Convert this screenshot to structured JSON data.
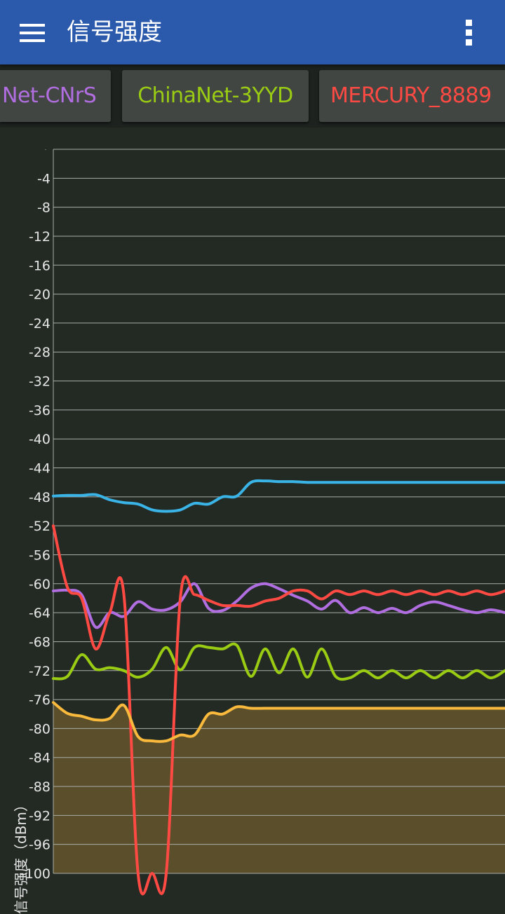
{
  "app": {
    "title": "信号强度"
  },
  "icons": {
    "menu": "menu-icon",
    "overflow": "more-vert-icon"
  },
  "tabs": [
    {
      "label": "Net-CNrS",
      "color": "#b06ee0"
    },
    {
      "label": "ChinaNet-3YYD",
      "color": "#9acc14"
    },
    {
      "label": "MERCURY_8889",
      "color": "#ff4a44"
    }
  ],
  "chart_data": {
    "type": "line",
    "ylabel": "信号强度（dBm）",
    "ylim": [
      -100,
      0
    ],
    "yticks": [
      -4,
      -8,
      -12,
      -16,
      -20,
      -24,
      -28,
      -32,
      -36,
      -40,
      -44,
      -48,
      -52,
      -56,
      -60,
      -64,
      -68,
      -72,
      -76,
      -80,
      -84,
      -88,
      -92,
      -96,
      -100
    ],
    "grid": true,
    "x": [
      0,
      0.5,
      1,
      1.5,
      2,
      2.5,
      3,
      3.5,
      4,
      4.5,
      5,
      5.5,
      6,
      6.5,
      7,
      7.5,
      8,
      8.5,
      9,
      9.5,
      10,
      10.5,
      11,
      11.5,
      12,
      12.5,
      13,
      13.5,
      14,
      14.5,
      15,
      15.5,
      16
    ],
    "series": [
      {
        "color": "#3ab4e6",
        "filled": false,
        "values": [
          -47.9,
          -47.8,
          -47.8,
          -47.7,
          -48.4,
          -48.8,
          -49.0,
          -49.8,
          -50.0,
          -49.8,
          -48.9,
          -49.0,
          -48.0,
          -47.9,
          -46.0,
          -45.8,
          -45.9,
          -45.9,
          -46.0,
          -46.0,
          -46.0,
          -46.0,
          -46.0,
          -46.0,
          -46.0,
          -46.0,
          -46.0,
          -46.0,
          -46.0,
          -46.0,
          -46.0,
          -46.0,
          -46.0
        ]
      },
      {
        "color": "#b06ee0",
        "filled": false,
        "values": [
          -61.0,
          -60.9,
          -61.5,
          -66.0,
          -64.0,
          -64.5,
          -62.5,
          -63.5,
          -63.6,
          -62.5,
          -60.0,
          -63.4,
          -63.7,
          -62.4,
          -60.6,
          -60.0,
          -60.7,
          -61.6,
          -62.4,
          -63.5,
          -62.3,
          -64.0,
          -63.3,
          -64.0,
          -63.4,
          -64.0,
          -63.0,
          -62.5,
          -63.0,
          -63.6,
          -64.0,
          -63.6,
          -64.0
        ]
      },
      {
        "color": "#9acc14",
        "filled": false,
        "values": [
          -73.1,
          -72.8,
          -69.8,
          -71.8,
          -71.6,
          -72.0,
          -72.9,
          -71.8,
          -68.8,
          -71.9,
          -68.8,
          -68.8,
          -69.0,
          -68.5,
          -72.8,
          -69.0,
          -72.3,
          -69.0,
          -72.9,
          -69.0,
          -72.8,
          -73.0,
          -72.0,
          -73.0,
          -72.0,
          -73.0,
          -72.0,
          -73.0,
          -72.0,
          -73.0,
          -72.0,
          -73.0,
          -72.0
        ]
      },
      {
        "color": "#ff4a44",
        "filled": false,
        "values": [
          -52.0,
          -60.5,
          -62.0,
          -69.0,
          -64.0,
          -61.5,
          -100,
          -100,
          -100,
          -62.0,
          -61.5,
          -62.3,
          -63.0,
          -63.0,
          -63.1,
          -62.4,
          -62.0,
          -61.0,
          -61.0,
          -62.1,
          -61.0,
          -61.5,
          -61.0,
          -61.5,
          -61.0,
          -61.5,
          -61.0,
          -61.5,
          -61.0,
          -61.5,
          -61.0,
          -61.5,
          -61.0
        ]
      },
      {
        "color": "#f9b93c",
        "filled": true,
        "fill": "#5b4e2a",
        "values": [
          -76.4,
          -77.9,
          -78.3,
          -78.8,
          -78.6,
          -76.8,
          -81.1,
          -81.7,
          -81.7,
          -80.9,
          -80.9,
          -78.0,
          -78.0,
          -77.0,
          -77.2,
          -77.2,
          -77.2,
          -77.2,
          -77.2,
          -77.2,
          -77.2,
          -77.2,
          -77.2,
          -77.2,
          -77.2,
          -77.2,
          -77.2,
          -77.2,
          -77.2,
          -77.2,
          -77.2,
          -77.2,
          -77.2
        ]
      }
    ]
  }
}
